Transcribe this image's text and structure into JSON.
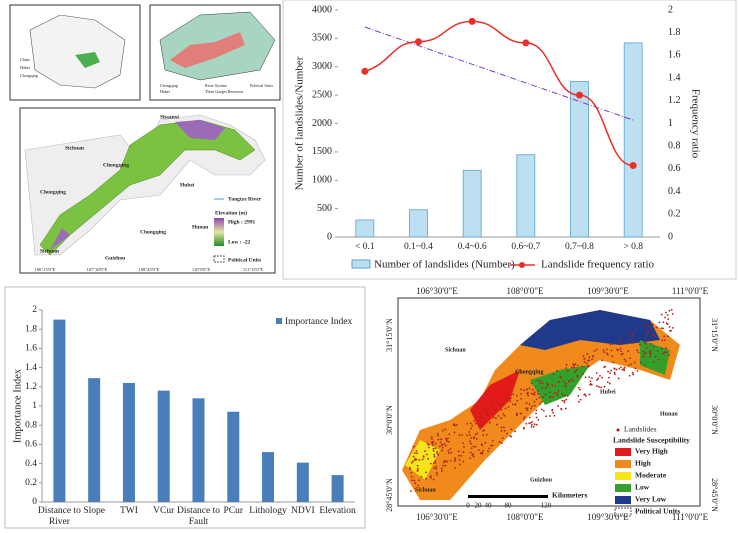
{
  "chart_data": [
    {
      "type": "bar-line",
      "categories": [
        "< 0.1",
        "0.1~0.4",
        "0.4~0.6",
        "0.6~0.7",
        "0.7~0.8",
        "> 0.8"
      ],
      "y_label": "Number of landslides/Number",
      "y2_label": "Frequency ratio",
      "series": [
        {
          "name": "Number of landslides (Number)",
          "color": "#bcdff2",
          "values": [
            300,
            480,
            1175,
            1450,
            2740,
            3420
          ]
        },
        {
          "name": "Landslide frequency ratio",
          "color": "#e8302a",
          "axis": "y2",
          "values": [
            1.46,
            1.72,
            1.9,
            1.71,
            1.25,
            0.63
          ]
        }
      ],
      "trendline": {
        "color": "#7b3fbf",
        "values": [
          1.85,
          1.03
        ]
      },
      "ylim": [
        0,
        4000
      ],
      "yticks": [
        0,
        500,
        1000,
        1500,
        2000,
        2500,
        3000,
        3500,
        4000
      ],
      "y2lim": [
        0,
        2
      ],
      "y2ticks": [
        0,
        0.2,
        0.4,
        0.6,
        0.8,
        1,
        1.2,
        1.4,
        1.6,
        1.8,
        2
      ]
    },
    {
      "type": "bar",
      "categories": [
        "Distance to River",
        "Slope",
        "TWI",
        "VCur",
        "Distance to Fault",
        "PCur",
        "Lithology",
        "NDVI",
        "Elevation"
      ],
      "series": [
        {
          "name": "Importance Index",
          "color": "#4a7ebb",
          "values": [
            1.9,
            1.29,
            1.24,
            1.16,
            1.08,
            0.94,
            0.52,
            0.41,
            0.28
          ]
        }
      ],
      "y_label": "Importance Index",
      "ylim": [
        0,
        2
      ],
      "yticks": [
        0,
        0.2,
        0.4,
        0.6,
        0.8,
        1,
        1.2,
        1.4,
        1.6,
        1.8,
        2
      ]
    }
  ],
  "maps": [
    {
      "labels": [
        "Shaanxi",
        "Sichuan",
        "Chongqing",
        "Hubei",
        "Chongqing",
        "Chongqing",
        "Hunan",
        "Guizhou",
        "Sichuan",
        "Yangtze River",
        "Elevation (m)",
        "High : 2991",
        "Low : -22",
        "Political Units"
      ],
      "xticks": [
        "106°15'0\"E",
        "107°30'0\"E",
        "108°45'0\"E",
        "110°0'0\"E",
        "111°15'0\"E"
      ],
      "inset_labels": [
        "China",
        "Hubei",
        "Chongqing",
        "Chongqing",
        "Hubei",
        "River System",
        "Three Gorges Reservoir",
        "Political Units"
      ]
    },
    {
      "labels": [
        "Sichuan",
        "Chongqing",
        "Hubei",
        "Hunan",
        "Guizhou",
        "Sichuan"
      ],
      "xticks": [
        "106°30'0\"E",
        "108°0'0\"E",
        "109°30'0\"E",
        "111°0'0\"E"
      ],
      "yticks": [
        "31°15'0\"N",
        "30°0'0\"N",
        "28°45'0\"N"
      ],
      "legend_title": "Landslide Susceptibility",
      "points_label": "Landslides",
      "legend": [
        {
          "label": "Very High",
          "color": "#e31a1c"
        },
        {
          "label": "High",
          "color": "#f08a1c"
        },
        {
          "label": "Moderate",
          "color": "#f5e51b"
        },
        {
          "label": "Low",
          "color": "#33a02c"
        },
        {
          "label": "Very Low",
          "color": "#1f3a8a"
        },
        {
          "label": "Political Units"
        }
      ],
      "scale_label": "Kilometers",
      "scale": [
        "0",
        "20",
        "40",
        "80",
        "120"
      ]
    }
  ]
}
